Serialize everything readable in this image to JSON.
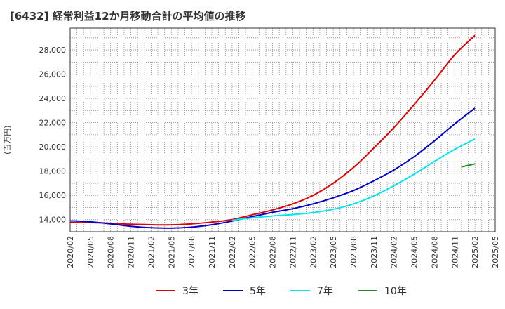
{
  "title": "[6432]  経常利益12か月移動合計の平均値の推移",
  "chart_data": {
    "type": "line",
    "title": "[6432]  経常利益12か月移動合計の平均値の推移",
    "xlabel": "",
    "ylabel": "(百万円)",
    "ylim": [
      13000,
      29800
    ],
    "yticks": [
      14000,
      16000,
      18000,
      20000,
      22000,
      24000,
      26000,
      28000
    ],
    "ytick_labels": [
      "14,000",
      "16,000",
      "18,000",
      "20,000",
      "22,000",
      "24,000",
      "26,000",
      "28,000"
    ],
    "x_range": [
      "2020/02",
      "2025/05"
    ],
    "xtick_labels": [
      "2020/02",
      "2020/05",
      "2020/08",
      "2020/11",
      "2021/02",
      "2021/05",
      "2021/08",
      "2021/11",
      "2022/02",
      "2022/05",
      "2022/08",
      "2022/11",
      "2023/02",
      "2023/05",
      "2023/08",
      "2023/11",
      "2024/02",
      "2024/05",
      "2024/08",
      "2024/11",
      "2025/02",
      "2025/05"
    ],
    "grid": true,
    "legend_position": "bottom",
    "series": [
      {
        "name": "3年",
        "color": "#e00000",
        "x": [
          "2020/02",
          "2020/05",
          "2020/08",
          "2020/11",
          "2021/02",
          "2021/05",
          "2021/08",
          "2021/11",
          "2022/02",
          "2022/05",
          "2022/08",
          "2022/11",
          "2023/02",
          "2023/05",
          "2023/08",
          "2023/11",
          "2024/02",
          "2024/05",
          "2024/08",
          "2024/11",
          "2025/02"
        ],
        "values": [
          13750,
          13750,
          13700,
          13620,
          13580,
          13570,
          13650,
          13800,
          14000,
          14400,
          14800,
          15300,
          16000,
          17000,
          18300,
          19900,
          21600,
          23500,
          25500,
          27600,
          29200
        ]
      },
      {
        "name": "5年",
        "color": "#0000cc",
        "x": [
          "2020/02",
          "2020/05",
          "2020/08",
          "2020/11",
          "2021/02",
          "2021/05",
          "2021/08",
          "2021/11",
          "2022/02",
          "2022/05",
          "2022/08",
          "2022/11",
          "2023/02",
          "2023/05",
          "2023/08",
          "2023/11",
          "2024/02",
          "2024/05",
          "2024/08",
          "2024/11",
          "2025/02"
        ],
        "values": [
          13900,
          13820,
          13650,
          13450,
          13330,
          13300,
          13380,
          13580,
          13880,
          14250,
          14600,
          14900,
          15300,
          15800,
          16400,
          17200,
          18100,
          19200,
          20500,
          21900,
          23200
        ]
      },
      {
        "name": "7年",
        "color": "#00e5ee",
        "x": [
          "2022/02",
          "2022/05",
          "2022/08",
          "2022/11",
          "2023/02",
          "2023/05",
          "2023/08",
          "2023/11",
          "2024/02",
          "2024/05",
          "2024/08",
          "2024/11",
          "2025/02"
        ],
        "values": [
          13950,
          14150,
          14300,
          14420,
          14580,
          14850,
          15300,
          15950,
          16800,
          17750,
          18800,
          19800,
          20650
        ]
      },
      {
        "name": "10年",
        "color": "#228b22",
        "x": [
          "2024/12",
          "2025/02"
        ],
        "values": [
          18350,
          18600
        ]
      }
    ]
  }
}
